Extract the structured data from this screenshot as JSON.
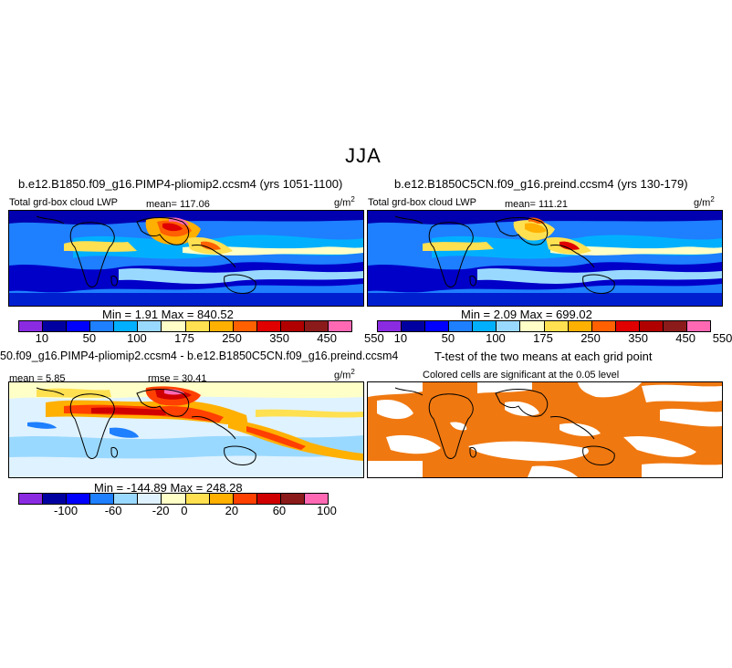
{
  "season": "JJA",
  "panels": {
    "top_left": {
      "case": "b.e12.B1850.f09_g16.PIMP4-pliomip2.ccsm4 (yrs 1051-1100)",
      "field": "Total grd-box cloud LWP",
      "mean_label": "mean=",
      "mean": "117.06",
      "units": "g/m",
      "units_exp": "2",
      "minmax": "Min =    1.91  Max =  840.52",
      "ticks": [
        "10",
        "50",
        "100",
        "175",
        "250",
        "350",
        "450",
        "550"
      ]
    },
    "top_right": {
      "case": "b.e12.B1850C5CN.f09_g16.preind.ccsm4 (yrs 130-179)",
      "field": "Total grd-box cloud LWP",
      "mean_label": "mean=",
      "mean": "111.21",
      "units": "g/m",
      "units_exp": "2",
      "minmax": "Min =    2.09  Max =  699.02",
      "ticks": [
        "10",
        "50",
        "100",
        "175",
        "250",
        "350",
        "450",
        "550"
      ]
    },
    "bottom_left": {
      "title": "50.f09_g16.PIMP4-pliomip2.ccsm4 - b.e12.B1850C5CN.f09_g16.preind.ccsm4",
      "mean_text": "mean =   5.85",
      "rmse_text": "rmse =  30.41",
      "units": "g/m",
      "units_exp": "2",
      "minmax": "Min = -144.89  Max =  248.28",
      "ticks": [
        "-100",
        "-60",
        "-20",
        "0",
        "20",
        "60",
        "100"
      ]
    },
    "bottom_right": {
      "title": "T-test of the two means at each grid point",
      "subtitle": "Colored cells are significant at the 0.05 level"
    }
  },
  "colors": {
    "abs_scale": [
      "#8a2be2",
      "#0000a0",
      "#0000ff",
      "#1e7fff",
      "#00b0ff",
      "#9ad9ff",
      "#ffffc8",
      "#ffe050",
      "#ffb000",
      "#ff6000",
      "#e00000",
      "#b00000",
      "#8b1a1a",
      "#ff69b4"
    ],
    "diff_scale": [
      "#8a2be2",
      "#0000a0",
      "#0000ff",
      "#1e7fff",
      "#9ad9ff",
      "#dff2ff",
      "#ffffc8",
      "#ffe050",
      "#ffb000",
      "#ff4000",
      "#d00000",
      "#8b1a1a",
      "#ff69b4"
    ],
    "significance": "#f07810"
  }
}
